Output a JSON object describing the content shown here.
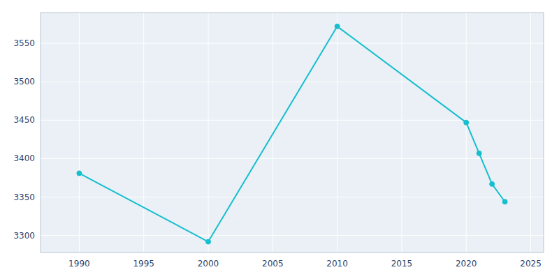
{
  "chart_data": {
    "type": "line",
    "x": [
      1990,
      2000,
      2010,
      2020,
      2021,
      2022,
      2023
    ],
    "values": [
      3381,
      3292,
      3572,
      3447,
      3407,
      3367,
      3344
    ],
    "color": "#17BECF",
    "marker": "circle",
    "xlim": [
      1987,
      2026
    ],
    "ylim": [
      3278,
      3590
    ],
    "xticks": [
      1990,
      1995,
      2000,
      2005,
      2010,
      2015,
      2020,
      2025
    ],
    "yticks": [
      3300,
      3350,
      3400,
      3450,
      3500,
      3550
    ],
    "grid": true
  }
}
